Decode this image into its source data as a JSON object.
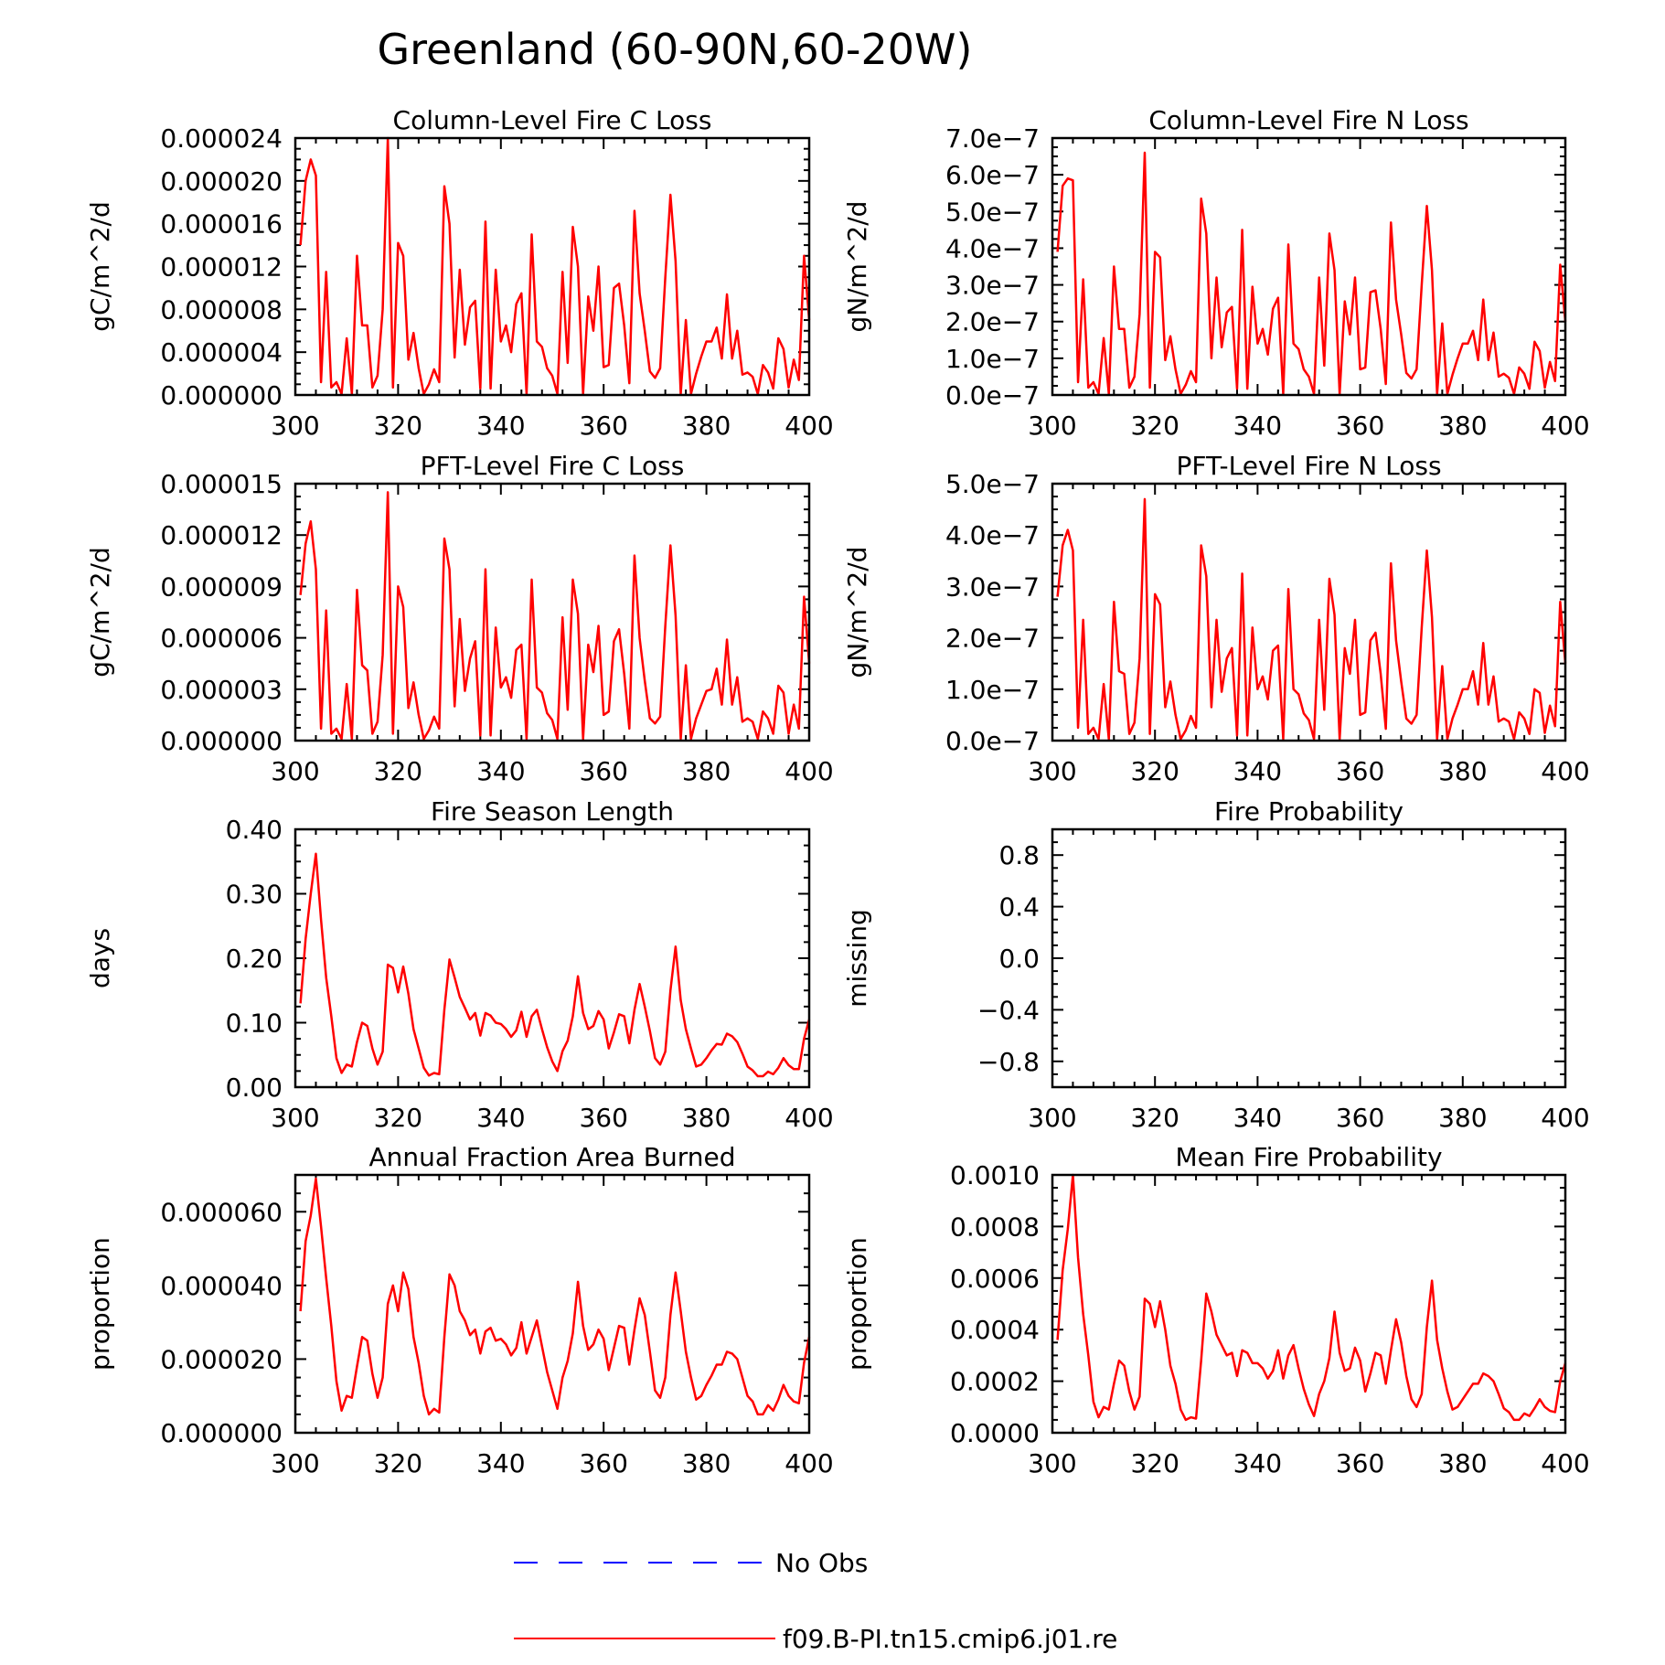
{
  "figure": {
    "title": "Greenland (60-90N,60-20W)",
    "legend": [
      {
        "label": "No Obs",
        "color": "#0000ff",
        "style": "dashed"
      },
      {
        "label": "f09.B-PI.tn15.cmip6.j01.re",
        "color": "#ff0000",
        "style": "solid"
      }
    ]
  },
  "chart_data": [
    {
      "type": "line",
      "title": "Column-Level Fire C Loss",
      "ylabel": "gC/m^2/d",
      "xlim": [
        300,
        400
      ],
      "ylim": [
        0,
        2.4e-05
      ],
      "xticks": [
        "300",
        "320",
        "340",
        "360",
        "380",
        "400"
      ],
      "yticks": [
        "0.000000",
        "0.000004",
        "0.000008",
        "0.000012",
        "0.000016",
        "0.000020",
        "0.000024"
      ],
      "x_start": 301,
      "series": [
        {
          "color": "#ff0000",
          "values": [
            1.4e-05,
            2e-05,
            2.2e-05,
            2.05e-05,
            1.2e-06,
            1.15e-05,
            7e-07,
            1.2e-06,
            1e-07,
            5.3e-06,
            1e-07,
            1.3e-05,
            6.5e-06,
            6.5e-06,
            7e-07,
            1.8e-06,
            8e-06,
            2.4e-05,
            7e-07,
            1.42e-05,
            1.3e-05,
            3.3e-06,
            5.8e-06,
            2.5e-06,
            1e-07,
            1e-06,
            2.4e-06,
            1.2e-06,
            1.95e-05,
            1.6e-05,
            3.5e-06,
            1.17e-05,
            4.7e-06,
            8.2e-06,
            8.8e-06,
            6e-07,
            1.62e-05,
            6e-07,
            1.17e-05,
            5e-06,
            6.5e-06,
            4e-06,
            8.5e-06,
            9.5e-06,
            1e-07,
            1.5e-05,
            5e-06,
            4.5e-06,
            2.5e-06,
            1.8e-06,
            1e-07,
            1.15e-05,
            3e-06,
            1.57e-05,
            1.2e-05,
            1e-07,
            9.2e-06,
            6e-06,
            1.2e-05,
            2.6e-06,
            2.8e-06,
            1e-05,
            1.04e-05,
            6.5e-06,
            1.1e-06,
            1.72e-05,
            9.5e-06,
            6e-06,
            2.2e-06,
            1.6e-06,
            2.5e-06,
            1.1e-05,
            1.87e-05,
            1.25e-05,
            1e-07,
            7e-06,
            1e-07,
            2e-06,
            3.6e-06,
            5e-06,
            5e-06,
            6.3e-06,
            3.4e-06,
            9.4e-06,
            3.4e-06,
            6e-06,
            1.9e-06,
            2.1e-06,
            1.7e-06,
            1e-07,
            2.8e-06,
            2.1e-06,
            6e-07,
            5.3e-06,
            4.3e-06,
            7e-07,
            3.3e-06,
            1.4e-06,
            1.3e-05,
            7e-06
          ]
        }
      ]
    },
    {
      "type": "line",
      "title": "Column-Level Fire N Loss",
      "ylabel": "gN/m^2/d",
      "xlim": [
        300,
        400
      ],
      "ylim": [
        0,
        7e-07
      ],
      "xticks": [
        "300",
        "320",
        "340",
        "360",
        "380",
        "400"
      ],
      "yticks": [
        "0.0e-7",
        "1.0e-7",
        "2.0e-7",
        "3.0e-7",
        "4.0e-7",
        "5.0e-7",
        "6.0e-7",
        "7.0e-7"
      ],
      "x_start": 301,
      "series": [
        {
          "color": "#ff0000",
          "values": [
            3.9e-07,
            5.7e-07,
            5.9e-07,
            5.85e-07,
            3.5e-08,
            3.15e-07,
            2e-08,
            3.5e-08,
            3e-09,
            1.55e-07,
            3e-09,
            3.5e-07,
            1.8e-07,
            1.8e-07,
            2e-08,
            5e-08,
            2.2e-07,
            6.6e-07,
            2e-08,
            3.9e-07,
            3.75e-07,
            9.5e-08,
            1.6e-07,
            7e-08,
            3e-09,
            2.8e-08,
            6.5e-08,
            3.5e-08,
            5.35e-07,
            4.4e-07,
            1e-07,
            3.2e-07,
            1.3e-07,
            2.25e-07,
            2.4e-07,
            1.7e-08,
            4.5e-07,
            1.7e-08,
            2.95e-07,
            1.4e-07,
            1.8e-07,
            1.1e-07,
            2.35e-07,
            2.65e-07,
            3e-09,
            4.1e-07,
            1.4e-07,
            1.25e-07,
            7e-08,
            5e-08,
            3e-09,
            3.2e-07,
            8e-08,
            4.4e-07,
            3.4e-07,
            3e-09,
            2.55e-07,
            1.65e-07,
            3.2e-07,
            7e-08,
            7.5e-08,
            2.8e-07,
            2.85e-07,
            1.8e-07,
            3e-08,
            4.7e-07,
            2.6e-07,
            1.65e-07,
            6e-08,
            4.5e-08,
            7e-08,
            3e-07,
            5.15e-07,
            3.4e-07,
            3e-09,
            1.95e-07,
            3e-09,
            5.5e-08,
            1e-07,
            1.4e-07,
            1.4e-07,
            1.75e-07,
            9.5e-08,
            2.6e-07,
            9.5e-08,
            1.7e-07,
            5e-08,
            5.8e-08,
            4.7e-08,
            3e-09,
            7.5e-08,
            5.8e-08,
            1.7e-08,
            1.45e-07,
            1.2e-07,
            2e-08,
            9e-08,
            3.8e-08,
            3.55e-07,
            2e-07
          ]
        }
      ]
    },
    {
      "type": "line",
      "title": "PFT-Level Fire C Loss",
      "ylabel": "gC/m^2/d",
      "xlim": [
        300,
        400
      ],
      "ylim": [
        0,
        1.5e-05
      ],
      "xticks": [
        "300",
        "320",
        "340",
        "360",
        "380",
        "400"
      ],
      "yticks": [
        "0.000000",
        "0.000003",
        "0.000006",
        "0.000009",
        "0.000012",
        "0.000015"
      ],
      "x_start": 301,
      "series": [
        {
          "color": "#ff0000",
          "values": [
            8.5e-06,
            1.15e-05,
            1.28e-05,
            1e-05,
            7e-07,
            7.6e-06,
            4e-07,
            7e-07,
            1e-07,
            3.3e-06,
            1e-07,
            8.8e-06,
            4.4e-06,
            4.1e-06,
            4e-07,
            1.1e-06,
            5e-06,
            1.45e-05,
            4e-07,
            9e-06,
            7.8e-06,
            1.9e-06,
            3.4e-06,
            1.5e-06,
            1e-07,
            6e-07,
            1.4e-06,
            7e-07,
            1.18e-05,
            1e-05,
            2e-06,
            7.1e-06,
            2.9e-06,
            4.8e-06,
            5.8e-06,
            3e-07,
            1e-05,
            3e-07,
            6.6e-06,
            3.1e-06,
            3.7e-06,
            2.5e-06,
            5.3e-06,
            5.6e-06,
            1e-07,
            9.4e-06,
            3.1e-06,
            2.8e-06,
            1.6e-06,
            1.2e-06,
            1e-07,
            7.2e-06,
            1.8e-06,
            9.4e-06,
            7.4e-06,
            1e-07,
            5.6e-06,
            4e-06,
            6.7e-06,
            1.5e-06,
            1.7e-06,
            5.8e-06,
            6.5e-06,
            3.9e-06,
            7e-07,
            1.08e-05,
            6e-06,
            3.5e-06,
            1.3e-06,
            1e-06,
            1.4e-06,
            6.7e-06,
            1.14e-05,
            7.3e-06,
            1e-07,
            4.4e-06,
            1e-07,
            1.3e-06,
            2.1e-06,
            2.9e-06,
            3e-06,
            4.2e-06,
            2.1e-06,
            5.9e-06,
            2.1e-06,
            3.7e-06,
            1.1e-06,
            1.3e-06,
            1.1e-06,
            1e-07,
            1.7e-06,
            1.3e-06,
            4e-07,
            3.2e-06,
            2.8e-06,
            4e-07,
            2.1e-06,
            7e-07,
            8.4e-06,
            4.5e-06
          ]
        }
      ]
    },
    {
      "type": "line",
      "title": "PFT-Level Fire N Loss",
      "ylabel": "gN/m^2/d",
      "xlim": [
        300,
        400
      ],
      "ylim": [
        0,
        5e-07
      ],
      "xticks": [
        "300",
        "320",
        "340",
        "360",
        "380",
        "400"
      ],
      "yticks": [
        "0.0e-7",
        "1.0e-7",
        "2.0e-7",
        "3.0e-7",
        "4.0e-7",
        "5.0e-7"
      ],
      "x_start": 301,
      "series": [
        {
          "color": "#ff0000",
          "values": [
            2.8e-07,
            3.8e-07,
            4.1e-07,
            3.7e-07,
            2.5e-08,
            2.35e-07,
            1.3e-08,
            2.5e-08,
            3e-09,
            1.1e-07,
            3e-09,
            2.7e-07,
            1.35e-07,
            1.3e-07,
            1.3e-08,
            3.5e-08,
            1.6e-07,
            4.7e-07,
            1.3e-08,
            2.85e-07,
            2.65e-07,
            6.5e-08,
            1.15e-07,
            5e-08,
            3e-09,
            2e-08,
            4.8e-08,
            2.5e-08,
            3.8e-07,
            3.2e-07,
            6.5e-08,
            2.35e-07,
            9.5e-08,
            1.6e-07,
            1.8e-07,
            1e-08,
            3.25e-07,
            1e-08,
            2.2e-07,
            1e-07,
            1.25e-07,
            8e-08,
            1.75e-07,
            1.85e-07,
            3e-09,
            2.95e-07,
            1e-07,
            9e-08,
            5.3e-08,
            4e-08,
            3e-09,
            2.35e-07,
            6e-08,
            3.15e-07,
            2.45e-07,
            3e-09,
            1.8e-07,
            1.3e-07,
            2.35e-07,
            5e-08,
            5.5e-08,
            1.95e-07,
            2.1e-07,
            1.3e-07,
            2.3e-08,
            3.45e-07,
            1.95e-07,
            1.15e-07,
            4.3e-08,
            3.3e-08,
            5e-08,
            2.2e-07,
            3.7e-07,
            2.4e-07,
            3e-09,
            1.45e-07,
            3e-09,
            4.3e-08,
            7e-08,
            1e-07,
            1e-07,
            1.35e-07,
            7e-08,
            1.9e-07,
            7e-08,
            1.25e-07,
            3.7e-08,
            4.3e-08,
            3.7e-08,
            3e-09,
            5.5e-08,
            4.3e-08,
            1.3e-08,
            1e-07,
            9.3e-08,
            1.5e-08,
            6.8e-08,
            2.8e-08,
            2.7e-07,
            1.5e-07
          ]
        }
      ]
    },
    {
      "type": "line",
      "title": "Fire Season Length",
      "ylabel": "days",
      "xlim": [
        300,
        400
      ],
      "ylim": [
        0,
        0.4
      ],
      "xticks": [
        "300",
        "320",
        "340",
        "360",
        "380",
        "400"
      ],
      "yticks": [
        "0.00",
        "0.10",
        "0.20",
        "0.30",
        "0.40"
      ],
      "x_start": 301,
      "series": [
        {
          "color": "#ff0000",
          "values": [
            0.13,
            0.23,
            0.3,
            0.362,
            0.26,
            0.17,
            0.11,
            0.045,
            0.022,
            0.035,
            0.032,
            0.07,
            0.1,
            0.095,
            0.06,
            0.035,
            0.055,
            0.19,
            0.185,
            0.147,
            0.187,
            0.145,
            0.09,
            0.06,
            0.03,
            0.018,
            0.022,
            0.02,
            0.12,
            0.198,
            0.17,
            0.14,
            0.123,
            0.105,
            0.115,
            0.08,
            0.115,
            0.111,
            0.1,
            0.098,
            0.09,
            0.078,
            0.088,
            0.117,
            0.078,
            0.11,
            0.12,
            0.09,
            0.062,
            0.04,
            0.025,
            0.056,
            0.072,
            0.11,
            0.172,
            0.115,
            0.09,
            0.095,
            0.118,
            0.105,
            0.06,
            0.085,
            0.113,
            0.11,
            0.068,
            0.12,
            0.16,
            0.125,
            0.087,
            0.045,
            0.035,
            0.055,
            0.15,
            0.218,
            0.135,
            0.09,
            0.06,
            0.032,
            0.035,
            0.045,
            0.057,
            0.067,
            0.066,
            0.083,
            0.079,
            0.07,
            0.052,
            0.032,
            0.026,
            0.017,
            0.017,
            0.024,
            0.02,
            0.03,
            0.045,
            0.034,
            0.028,
            0.028,
            0.075,
            0.105
          ]
        }
      ]
    },
    {
      "type": "line",
      "title": "Fire Probability",
      "ylabel": "missing",
      "xlim": [
        300,
        400
      ],
      "ylim": [
        -1.0,
        1.0
      ],
      "xticks": [
        "300",
        "320",
        "340",
        "360",
        "380",
        "400"
      ],
      "yticks": [
        "-0.8",
        "-0.4",
        "0.0",
        "0.4",
        "0.8"
      ],
      "ytick_values": [
        -0.8,
        -0.4,
        0.0,
        0.4,
        0.8
      ],
      "x_start": 301,
      "series": []
    },
    {
      "type": "line",
      "title": "Annual Fraction Area Burned",
      "ylabel": "proportion",
      "xlim": [
        300,
        400
      ],
      "ylim": [
        0,
        7e-05
      ],
      "xticks": [
        "300",
        "320",
        "340",
        "360",
        "380",
        "400"
      ],
      "yticks": [
        "0.000000",
        "0.000020",
        "0.000040",
        "0.000060"
      ],
      "x_start": 301,
      "series": [
        {
          "color": "#ff0000",
          "values": [
            3.3e-05,
            5.2e-05,
            5.9e-05,
            6.9e-05,
            5.6e-05,
            4.2e-05,
            2.9e-05,
            1.4e-05,
            6e-06,
            1e-05,
            9.5e-06,
            1.8e-05,
            2.6e-05,
            2.5e-05,
            1.6e-05,
            9.5e-06,
            1.5e-05,
            3.5e-05,
            4e-05,
            3.3e-05,
            4.35e-05,
            3.9e-05,
            2.6e-05,
            1.9e-05,
            1e-05,
            5e-06,
            6.5e-06,
            5.5e-06,
            2.6e-05,
            4.3e-05,
            4e-05,
            3.3e-05,
            3.05e-05,
            2.65e-05,
            2.8e-05,
            2.15e-05,
            2.75e-05,
            2.85e-05,
            2.5e-05,
            2.55e-05,
            2.4e-05,
            2.1e-05,
            2.3e-05,
            3e-05,
            2.15e-05,
            2.6e-05,
            3.05e-05,
            2.35e-05,
            1.65e-05,
            1.15e-05,
            6.5e-06,
            1.5e-05,
            1.95e-05,
            2.7e-05,
            4.1e-05,
            2.9e-05,
            2.25e-05,
            2.4e-05,
            2.8e-05,
            2.55e-05,
            1.7e-05,
            2.3e-05,
            2.9e-05,
            2.85e-05,
            1.85e-05,
            2.8e-05,
            3.65e-05,
            3.2e-05,
            2.2e-05,
            1.15e-05,
            9.5e-06,
            1.5e-05,
            3.2e-05,
            4.35e-05,
            3.3e-05,
            2.2e-05,
            1.5e-05,
            9e-06,
            1e-05,
            1.3e-05,
            1.55e-05,
            1.85e-05,
            1.85e-05,
            2.2e-05,
            2.15e-05,
            2e-05,
            1.5e-05,
            1e-05,
            8.5e-06,
            5e-06,
            5e-06,
            7.5e-06,
            6e-06,
            9e-06,
            1.3e-05,
            1e-05,
            8.5e-06,
            8e-06,
            1.9e-05,
            2.6e-05
          ]
        }
      ]
    },
    {
      "type": "line",
      "title": "Mean Fire Probability",
      "ylabel": "proportion",
      "xlim": [
        300,
        400
      ],
      "ylim": [
        0,
        0.001
      ],
      "xticks": [
        "300",
        "320",
        "340",
        "360",
        "380",
        "400"
      ],
      "yticks": [
        "0.0000",
        "0.0002",
        "0.0004",
        "0.0006",
        "0.0008",
        "0.0010"
      ],
      "x_start": 301,
      "series": [
        {
          "color": "#ff0000",
          "values": [
            0.00036,
            0.00063,
            0.00079,
            0.001,
            0.00068,
            0.00046,
            0.0003,
            0.00012,
            6e-05,
            0.0001,
            9e-05,
            0.00019,
            0.00028,
            0.00026,
            0.00016,
            9e-05,
            0.00014,
            0.00052,
            0.0005,
            0.00041,
            0.00051,
            0.0004,
            0.00026,
            0.00019,
            9e-05,
            5e-05,
            6e-05,
            5.5e-05,
            0.00028,
            0.00054,
            0.00047,
            0.00038,
            0.00034,
            0.0003,
            0.00031,
            0.00022,
            0.00032,
            0.00031,
            0.00027,
            0.00027,
            0.00025,
            0.00021,
            0.00024,
            0.00032,
            0.00021,
            0.0003,
            0.00034,
            0.00025,
            0.00017,
            0.00011,
            6.5e-05,
            0.00015,
            0.0002,
            0.00029,
            0.00047,
            0.00031,
            0.00024,
            0.00025,
            0.00033,
            0.00028,
            0.00016,
            0.00023,
            0.00031,
            0.0003,
            0.00019,
            0.00032,
            0.00044,
            0.00035,
            0.00022,
            0.00013,
            0.0001,
            0.00015,
            0.00041,
            0.00059,
            0.00036,
            0.00025,
            0.00016,
            9e-05,
            0.0001,
            0.00013,
            0.00016,
            0.00019,
            0.00019,
            0.00023,
            0.00022,
            0.0002,
            0.00015,
            9.5e-05,
            8e-05,
            5e-05,
            5e-05,
            7.5e-05,
            6.5e-05,
            9.5e-05,
            0.00013,
            0.0001,
            8.5e-05,
            8e-05,
            0.0002,
            0.00027
          ]
        }
      ]
    }
  ]
}
